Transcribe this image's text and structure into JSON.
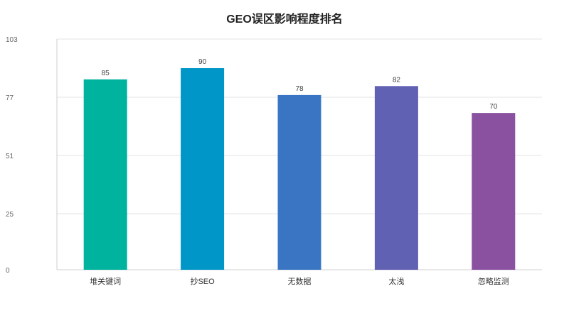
{
  "chart_data": {
    "type": "bar",
    "title": "GEO误区影响程度排名",
    "xlabel": "",
    "ylabel": "",
    "categories": [
      "堆关键词",
      "抄SEO",
      "无数据",
      "太浅",
      "忽略监测"
    ],
    "values": [
      85,
      90,
      78,
      82,
      70
    ],
    "colors": [
      "#00b39f",
      "#0096c7",
      "#3a75c4",
      "#6161b4",
      "#8a51a1"
    ],
    "ylim": [
      0,
      103
    ],
    "yticks": [
      0,
      25,
      51,
      77,
      103
    ],
    "grid": true,
    "legend": "none"
  }
}
